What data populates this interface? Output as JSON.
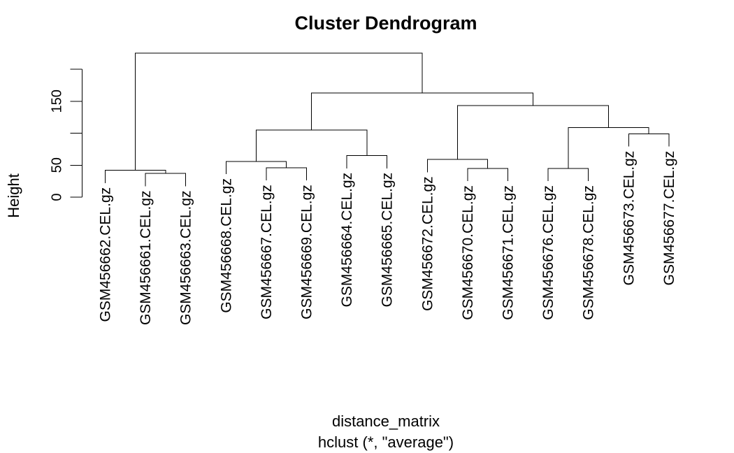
{
  "chart_data": {
    "type": "dendrogram",
    "title": "Cluster Dendrogram",
    "ylabel": "Height",
    "xlabel": "distance_matrix",
    "sublabel": "hclust (*, \"average\")",
    "ylim": [
      0,
      200
    ],
    "yticks": [
      0,
      50,
      100,
      150,
      200
    ],
    "ytick_labels": [
      "0",
      "50",
      "",
      "150",
      ""
    ],
    "leaves": [
      "GSM456662.CEL.gz",
      "GSM456661.CEL.gz",
      "GSM456663.CEL.gz",
      "GSM456668.CEL.gz",
      "GSM456667.CEL.gz",
      "GSM456669.CEL.gz",
      "GSM456664.CEL.gz",
      "GSM456665.CEL.gz",
      "GSM456672.CEL.gz",
      "GSM456670.CEL.gz",
      "GSM456671.CEL.gz",
      "GSM456676.CEL.gz",
      "GSM456678.CEL.gz",
      "GSM456673.CEL.gz",
      "GSM456677.CEL.gz"
    ],
    "merges": [
      {
        "left": "GSM456661.CEL.gz",
        "right": "GSM456663.CEL.gz",
        "height": 37
      },
      {
        "left": "GSM456662.CEL.gz",
        "right": "merge-0",
        "height": 42
      },
      {
        "left": "GSM456667.CEL.gz",
        "right": "GSM456669.CEL.gz",
        "height": 46
      },
      {
        "left": "GSM456668.CEL.gz",
        "right": "merge-2",
        "height": 56
      },
      {
        "left": "GSM456664.CEL.gz",
        "right": "GSM456665.CEL.gz",
        "height": 65
      },
      {
        "left": "merge-3",
        "right": "merge-4",
        "height": 105
      },
      {
        "left": "GSM456670.CEL.gz",
        "right": "GSM456671.CEL.gz",
        "height": 45
      },
      {
        "left": "GSM456672.CEL.gz",
        "right": "merge-6",
        "height": 59
      },
      {
        "left": "GSM456676.CEL.gz",
        "right": "GSM456678.CEL.gz",
        "height": 45
      },
      {
        "left": "GSM456673.CEL.gz",
        "right": "GSM456677.CEL.gz",
        "height": 99
      },
      {
        "left": "merge-8",
        "right": "merge-9",
        "height": 109
      },
      {
        "left": "merge-7",
        "right": "merge-10",
        "height": 143
      },
      {
        "left": "merge-5",
        "right": "merge-11",
        "height": 163
      },
      {
        "left": "merge-1",
        "right": "merge-12",
        "height": 225
      }
    ],
    "hang": 0.1,
    "grid": false,
    "legend": "none"
  }
}
